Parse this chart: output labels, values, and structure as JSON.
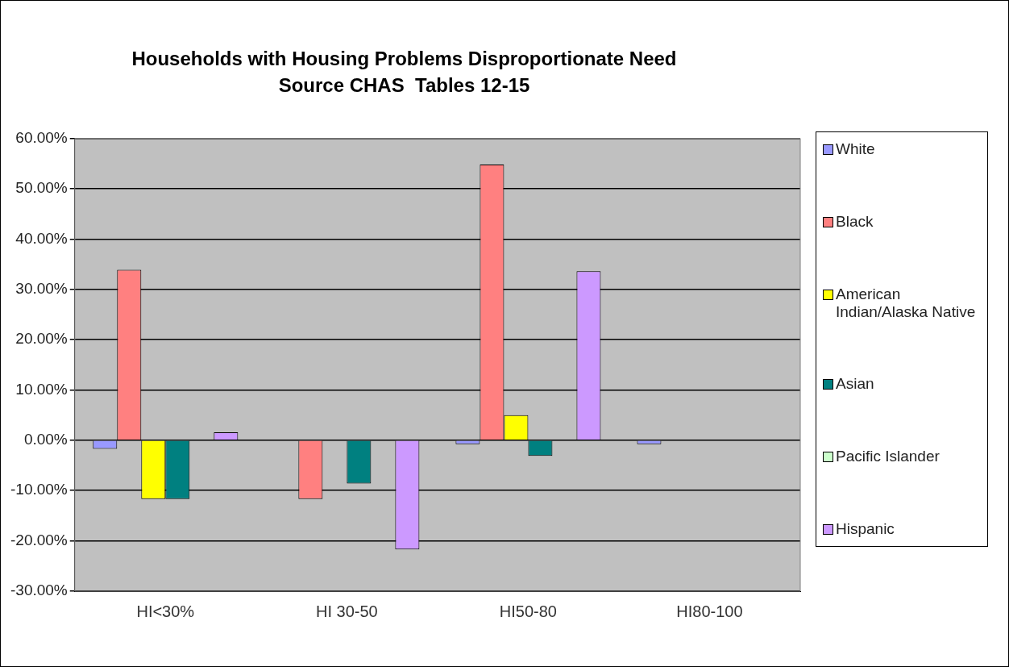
{
  "chart_data": {
    "type": "bar",
    "title": "Households with Housing Problems Disproportionate Need",
    "subtitle": "Source CHAS  Tables 12-15",
    "categories": [
      "HI<30%",
      "HI 30-50",
      "HI50-80",
      "HI80-100"
    ],
    "series": [
      {
        "name": "White",
        "color": "#9999ff",
        "values": [
          -1.7,
          0,
          -0.8,
          -0.8
        ]
      },
      {
        "name": "Black",
        "color": "#ff8080",
        "values": [
          33.9,
          -11.7,
          54.8,
          0
        ]
      },
      {
        "name": "American Indian/Alaska Native",
        "color": "#ffff00",
        "values": [
          -11.7,
          0,
          5.0,
          0
        ]
      },
      {
        "name": "Asian",
        "color": "#008080",
        "values": [
          -11.7,
          -8.6,
          -3.1,
          0
        ]
      },
      {
        "name": "Pacific Islander",
        "color": "#ccffcc",
        "values": [
          0,
          0,
          0,
          0
        ]
      },
      {
        "name": "Hispanic",
        "color": "#cc99ff",
        "values": [
          1.6,
          -21.7,
          33.6,
          0
        ]
      }
    ],
    "ylim": [
      -30,
      60
    ],
    "yticks": [
      {
        "value": -30,
        "label": "-30.00%"
      },
      {
        "value": -20,
        "label": "-20.00%"
      },
      {
        "value": -10,
        "label": "-10.00%"
      },
      {
        "value": 0,
        "label": "0.00%"
      },
      {
        "value": 10,
        "label": "10.00%"
      },
      {
        "value": 20,
        "label": "20.00%"
      },
      {
        "value": 30,
        "label": "30.00%"
      },
      {
        "value": 40,
        "label": "40.00%"
      },
      {
        "value": 50,
        "label": "50.00%"
      },
      {
        "value": 60,
        "label": "60.00%"
      }
    ],
    "grid": "y",
    "legend": "right"
  }
}
